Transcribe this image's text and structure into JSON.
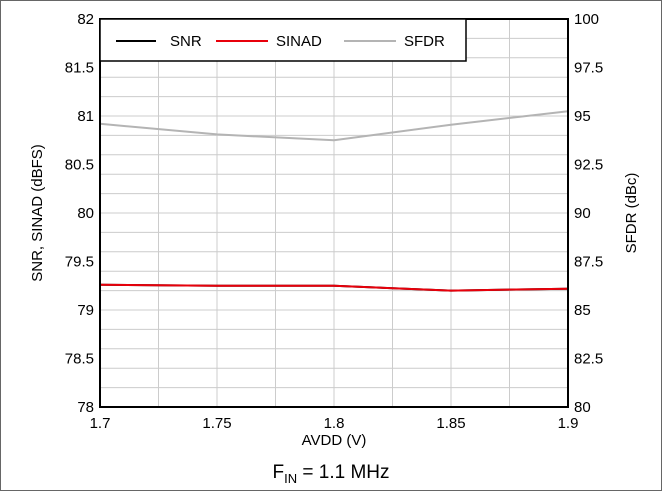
{
  "chart_data": {
    "type": "line",
    "x": [
      1.7,
      1.75,
      1.8,
      1.85,
      1.9
    ],
    "xlabel": "AVDD (V)",
    "xlim": [
      1.7,
      1.9
    ],
    "x_ticks": [
      "1.7",
      "1.75",
      "1.8",
      "1.85",
      "1.9"
    ],
    "ylabel": "SNR, SINAD (dBFS)",
    "ylim": [
      78,
      82
    ],
    "y_ticks": [
      "78",
      "78.5",
      "79",
      "79.5",
      "80",
      "80.5",
      "81",
      "81.5",
      "82"
    ],
    "y2label": "SFDR (dBc)",
    "y2lim": [
      80,
      100
    ],
    "y2_ticks": [
      "80",
      "82.5",
      "85",
      "87.5",
      "90",
      "92.5",
      "95",
      "97.5",
      "100"
    ],
    "grid": true,
    "legend_position": "top-left",
    "series": [
      {
        "name": "SNR",
        "axis": "left",
        "color": "#000000",
        "values": [
          79.26,
          79.25,
          79.25,
          79.2,
          79.22
        ]
      },
      {
        "name": "SINAD",
        "axis": "left",
        "color": "#e8000b",
        "values": [
          79.26,
          79.25,
          79.25,
          79.2,
          79.22
        ]
      },
      {
        "name": "SFDR",
        "axis": "right",
        "color": "#b4b4b4",
        "values": [
          94.6,
          94.05,
          93.75,
          94.55,
          95.25
        ]
      }
    ],
    "caption": {
      "main": "F",
      "sub": "IN",
      "rest": " = 1.1 MHz"
    }
  }
}
